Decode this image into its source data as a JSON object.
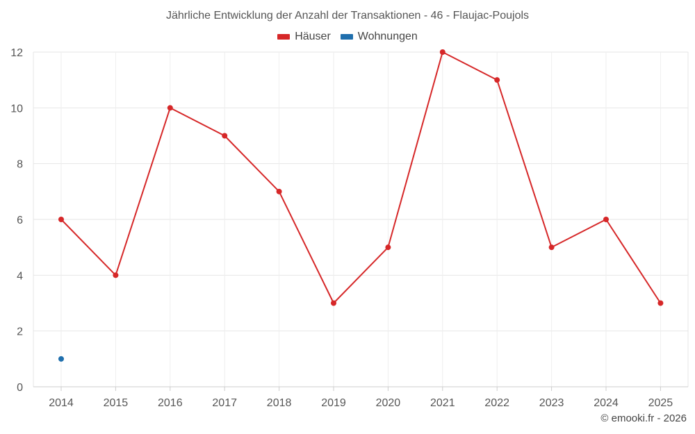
{
  "chart_data": {
    "type": "line",
    "title": "Jährliche Entwicklung der Anzahl der Transaktionen - 46 - Flaujac-Poujols",
    "x": [
      "2014",
      "2015",
      "2016",
      "2017",
      "2018",
      "2019",
      "2020",
      "2021",
      "2022",
      "2023",
      "2024",
      "2025"
    ],
    "y_ticks": [
      "0",
      "2",
      "4",
      "6",
      "8",
      "10",
      "12"
    ],
    "ylim": [
      0,
      12
    ],
    "grid": true,
    "legend_position": "top-center",
    "series": [
      {
        "name": "Häuser",
        "color": "#d62728",
        "values": [
          6,
          4,
          10,
          9,
          7,
          3,
          5,
          12,
          11,
          5,
          6,
          3
        ]
      },
      {
        "name": "Wohnungen",
        "color": "#1f6fad",
        "values": [
          1,
          null,
          null,
          null,
          null,
          null,
          null,
          null,
          null,
          null,
          null,
          null
        ]
      }
    ]
  },
  "credit": "© emooki.fr - 2026"
}
